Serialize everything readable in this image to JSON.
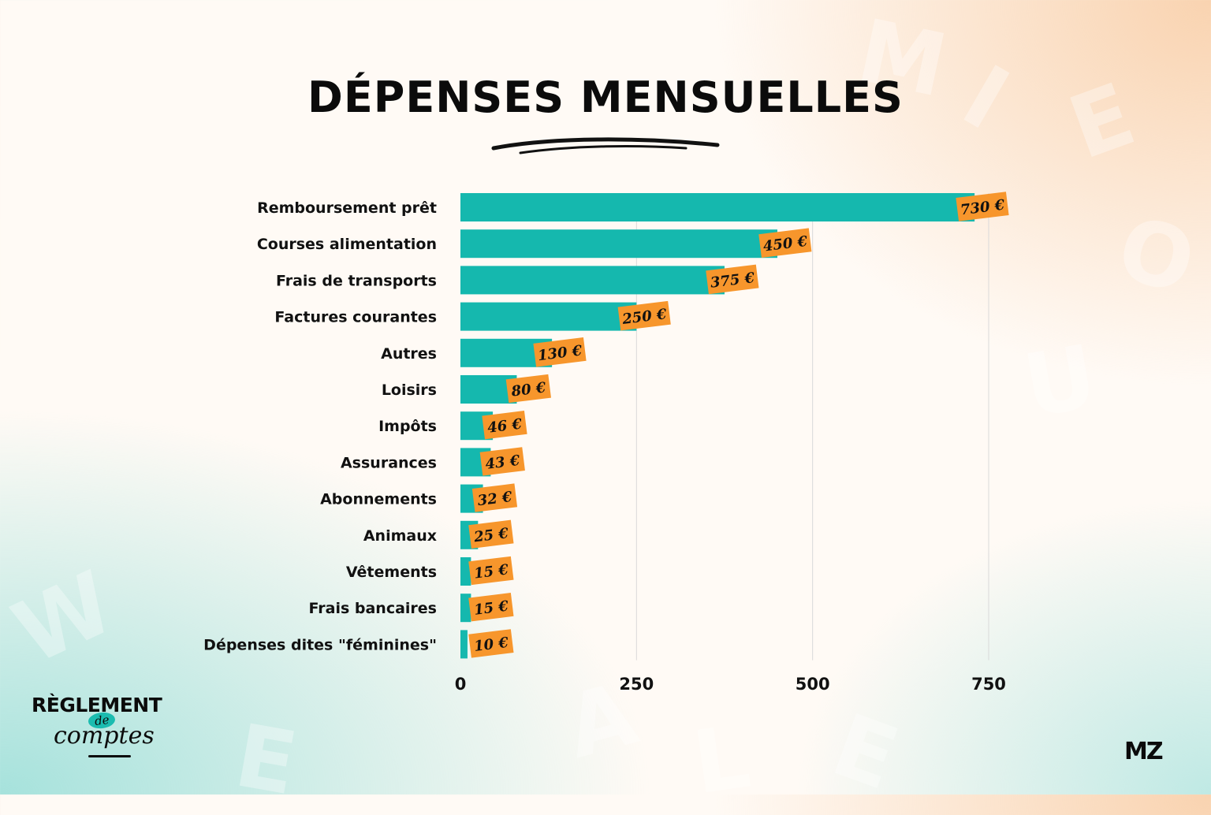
{
  "page": {
    "title": "DÉPENSES MENSUELLES",
    "logo": {
      "line1": "RÈGLEMENT",
      "line2": "de",
      "line3": "comptes"
    },
    "brand_mark": "MZ"
  },
  "colors": {
    "bar": "#15b8ae",
    "value_tag": "#f7962c",
    "text": "#111111",
    "grid": "#d9d9d9"
  },
  "chart_data": {
    "type": "bar",
    "orientation": "horizontal",
    "title": "DÉPENSES MENSUELLES",
    "categories": [
      "Remboursement prêt",
      "Courses alimentation",
      "Frais de transports",
      "Factures courantes",
      "Autres",
      "Loisirs",
      "Impôts",
      "Assurances",
      "Abonnements",
      "Animaux",
      "Vêtements",
      "Frais bancaires",
      "Dépenses dites \"féminines\""
    ],
    "values": [
      730,
      450,
      375,
      250,
      130,
      80,
      46,
      43,
      32,
      25,
      15,
      15,
      10
    ],
    "value_labels": [
      "730 €",
      "450 €",
      "375 €",
      "250 €",
      "130 €",
      "80 €",
      "46 €",
      "43 €",
      "32 €",
      "25 €",
      "15 €",
      "15 €",
      "10 €"
    ],
    "x_ticks": [
      0,
      250,
      500,
      750
    ],
    "x_tick_labels": [
      "0",
      "250",
      "500",
      "750"
    ],
    "xlim": [
      0,
      800
    ],
    "grid": "vertical",
    "legend": "none"
  }
}
